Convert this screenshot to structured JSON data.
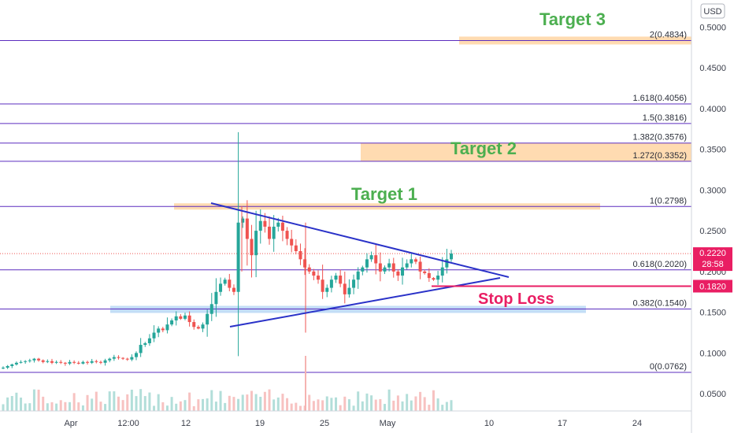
{
  "currency_label": "USD",
  "colors": {
    "fib_line": "#5b2dbf",
    "zone_orange": "#ffd7a8",
    "zone_blue": "#bcd9f5",
    "candle_up": "#26a69a",
    "candle_down": "#ef5350",
    "trendline": "#2a32c8",
    "target_text": "#4caf50",
    "stop": "#e91e63",
    "price_tag": "#e91e63"
  },
  "chart_data": {
    "type": "candlestick",
    "ylim": [
      0.0405,
      0.5138
    ],
    "y_ticks": [
      "0.0500",
      "0.1000",
      "0.1500",
      "0.2000",
      "0.2500",
      "0.3000",
      "0.3500",
      "0.4000",
      "0.4500",
      "0.5000"
    ],
    "x_ticks": [
      "Apr",
      "12:00",
      "12",
      "19",
      "25",
      "May",
      "10",
      "17",
      "24"
    ],
    "fib_levels": [
      {
        "label": "2(0.4834)",
        "value": 0.4834
      },
      {
        "label": "1.618(0.4056)",
        "value": 0.4056
      },
      {
        "label": "1.5(0.3816)",
        "value": 0.3816
      },
      {
        "label": "1.382(0.3576)",
        "value": 0.3576
      },
      {
        "label": "1.272(0.3352)",
        "value": 0.3352
      },
      {
        "label": "1(0.2798)",
        "value": 0.2798
      },
      {
        "label": "0.618(0.2020)",
        "value": 0.202
      },
      {
        "label": "0.382(0.1540)",
        "value": 0.154
      },
      {
        "label": "0(0.0762)",
        "value": 0.0762
      }
    ],
    "annotations": {
      "target1": "Target 1",
      "target2": "Target 2",
      "target3": "Target 3",
      "stop_loss": "Stop Loss"
    },
    "last_price": "0.2220",
    "countdown": "28:58",
    "stop_price": "0.1820",
    "candles": {
      "description": "approximate closing path of the candlestick series",
      "closes": [
        0.082,
        0.084,
        0.086,
        0.088,
        0.089,
        0.09,
        0.091,
        0.093,
        0.091,
        0.089,
        0.09,
        0.088,
        0.089,
        0.088,
        0.087,
        0.089,
        0.088,
        0.087,
        0.089,
        0.088,
        0.09,
        0.089,
        0.088,
        0.091,
        0.093,
        0.095,
        0.094,
        0.093,
        0.092,
        0.095,
        0.1,
        0.11,
        0.112,
        0.118,
        0.125,
        0.13,
        0.128,
        0.135,
        0.14,
        0.145,
        0.142,
        0.146,
        0.138,
        0.132,
        0.13,
        0.135,
        0.148,
        0.16,
        0.175,
        0.185,
        0.19,
        0.18,
        0.175,
        0.26,
        0.265,
        0.24,
        0.22,
        0.25,
        0.262,
        0.255,
        0.24,
        0.255,
        0.26,
        0.25,
        0.24,
        0.232,
        0.225,
        0.215,
        0.205,
        0.2,
        0.195,
        0.19,
        0.175,
        0.18,
        0.19,
        0.195,
        0.185,
        0.172,
        0.18,
        0.19,
        0.2,
        0.205,
        0.215,
        0.22,
        0.21,
        0.2,
        0.205,
        0.21,
        0.2,
        0.195,
        0.205,
        0.21,
        0.215,
        0.212,
        0.2,
        0.198,
        0.192,
        0.19,
        0.195,
        0.205,
        0.215,
        0.222
      ],
      "start_date": "Mar 27",
      "end_date": "May 7"
    }
  }
}
